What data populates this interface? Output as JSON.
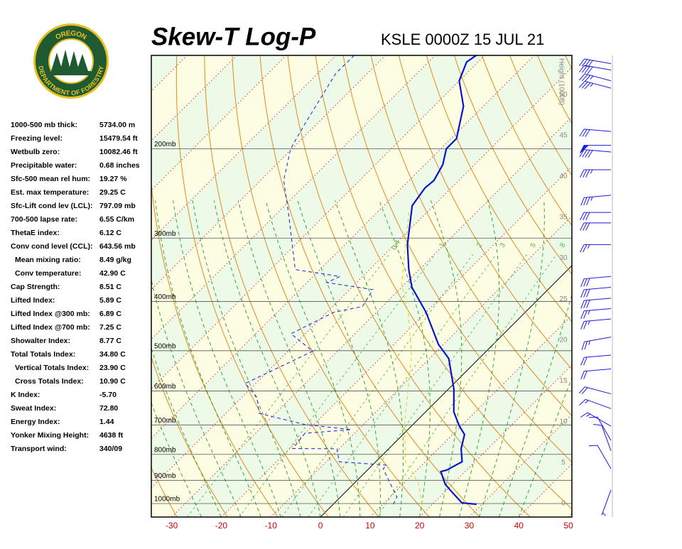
{
  "logo": {
    "top": "OREGON",
    "bottom": "DEPARTMENT OF FORESTRY"
  },
  "title": "Skew-T Log-P",
  "subtitle": "KSLE 0000Z 15 JUL 21",
  "indices": [
    [
      "1000-500 mb thick:",
      "5734.00 m"
    ],
    [
      "Freezing level:",
      "15479.54 ft"
    ],
    [
      "Wetbulb zero:",
      "10082.46 ft"
    ],
    [
      "Precipitable water:",
      "0.68 inches"
    ],
    [
      "Sfc-500 mean rel hum:",
      "19.27 %"
    ],
    [
      "Est. max temperature:",
      "29.25 C"
    ],
    [
      "Sfc-Lift cond lev (LCL):",
      "797.09 mb"
    ],
    [
      "700-500 lapse rate:",
      "6.55 C/km"
    ],
    [
      "ThetaE index:",
      "6.12 C"
    ],
    [
      "Conv cond level (CCL):",
      "643.56 mb"
    ],
    [
      "Mean mixing ratio:",
      "8.49 g/kg"
    ],
    [
      "Conv temperature:",
      "42.90 C"
    ],
    [
      "Cap Strength:",
      "8.51 C"
    ],
    [
      "Lifted Index:",
      "5.89 C"
    ],
    [
      "Lifted Index @300 mb:",
      "6.89 C"
    ],
    [
      "Lifted Index @700 mb:",
      "7.25 C"
    ],
    [
      "Showalter Index:",
      "8.77 C"
    ],
    [
      "Total Totals Index:",
      "34.80 C"
    ],
    [
      "Vertical Totals Index:",
      "23.90 C"
    ],
    [
      "Cross Totals Index:",
      "10.90 C"
    ],
    [
      "K Index:",
      "-5.70"
    ],
    [
      "Sweat Index:",
      "72.80"
    ],
    [
      "Energy Index:",
      "1.44"
    ],
    [
      "Yonker Mixing Height:",
      "4638 ft"
    ],
    [
      "Transport wind:",
      "340/09"
    ]
  ],
  "chart_data": {
    "type": "skewt",
    "xlim": [
      -34.1,
      50.7
    ],
    "xticks": [
      -30,
      -20,
      -10,
      0,
      10,
      20,
      30,
      40,
      50
    ],
    "ylim": [
      1063,
      131
    ],
    "log_y": true,
    "yticks": [
      {
        "value": 1000,
        "label": "1000mb"
      },
      {
        "value": 900,
        "label": "900mb"
      },
      {
        "value": 800,
        "label": "800mb"
      },
      {
        "value": 700,
        "label": "700mb"
      },
      {
        "value": 600,
        "label": "600mb"
      },
      {
        "value": 500,
        "label": "500mb"
      },
      {
        "value": 400,
        "label": "400mb"
      },
      {
        "value": 300,
        "label": "300mb"
      },
      {
        "value": 200,
        "label": "200mb"
      }
    ],
    "y2label": "Height (1000ft)",
    "y2lim": [
      -1.65,
      54.8
    ],
    "y2ticks": [
      0,
      5,
      10,
      15,
      20,
      25,
      30,
      35,
      40,
      45,
      50
    ],
    "mixing_ratio_lines": [
      0.4,
      1,
      2,
      3,
      5,
      8
    ],
    "series": [
      {
        "color": "#0a14c8",
        "pressure": [
          1003,
          997,
          956,
          917,
          865,
          859,
          827,
          780,
          731,
          704,
          660,
          595,
          518,
          486,
          420,
          375,
          346,
          309,
          259,
          239,
          231,
          215,
          200,
          191,
          165,
          147,
          135,
          131
        ],
        "values": [
          28.9,
          25.7,
          22.1,
          18.6,
          15.1,
          16.0,
          17.4,
          14.6,
          12.4,
          9.7,
          5.7,
          1.1,
          -6.1,
          -11.0,
          -20.0,
          -27.9,
          -32.1,
          -37.4,
          -44.3,
          -45.3,
          -45.0,
          -46.4,
          -48.9,
          -48.9,
          -54.0,
          -60.0,
          -62.3,
          -61.7
        ]
      },
      {
        "color": "#2233dd",
        "dash": true,
        "pressure": [
          1003,
          971,
          854,
          840,
          827,
          780,
          779,
          727,
          715,
          699,
          664,
          618,
          580,
          501,
          463,
          420,
          409,
          379,
          367,
          357,
          346,
          267,
          231,
          200,
          179,
          142,
          131
        ],
        "values": [
          12.1,
          11.4,
          2.9,
          2.9,
          -7.4,
          -10.4,
          -19.4,
          -20.0,
          -11.4,
          -21.7,
          -33.3,
          -36.9,
          -42.1,
          -35.0,
          -42.9,
          -38.6,
          -34.0,
          -35.3,
          -46.0,
          -44.6,
          -55.0,
          -67.9,
          -75.3,
          -80.3,
          -82.4,
          -86.4,
          -86.3
        ]
      },
      {
        "color": "#d8d820",
        "dash": true,
        "pressure": [
          1003,
          911,
          827,
          704,
          510,
          420,
          369,
          267
        ],
        "values": [
          17.9,
          12.9,
          6.0,
          -1.4,
          -14.3,
          -23.6,
          -30.7,
          -43.6
        ]
      }
    ],
    "winds": {
      "color": "#1a1ae0",
      "pressure": [
        136,
        140,
        147,
        152,
        185,
        197,
        203,
        220,
        247,
        267,
        280,
        309,
        357,
        375,
        394,
        413,
        433,
        470,
        510,
        543,
        608,
        650,
        704,
        751,
        787,
        854,
        940
      ],
      "direction": [
        280,
        280,
        285,
        285,
        275,
        270,
        275,
        270,
        265,
        270,
        270,
        270,
        265,
        265,
        265,
        265,
        265,
        260,
        265,
        265,
        285,
        290,
        300,
        330,
        340,
        330,
        200
      ],
      "speed": [
        40,
        40,
        35,
        35,
        30,
        50,
        40,
        35,
        35,
        30,
        30,
        25,
        30,
        30,
        30,
        25,
        25,
        25,
        20,
        20,
        20,
        15,
        15,
        10,
        10,
        10,
        5
      ]
    }
  }
}
